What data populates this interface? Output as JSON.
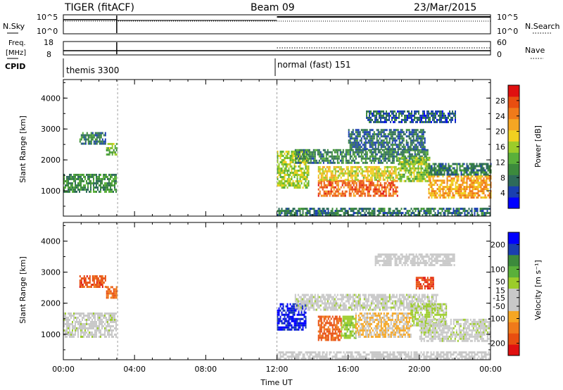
{
  "header": {
    "title": "TIGER (fitACF)",
    "beam": "Beam 09",
    "date": "23/Mar/2015"
  },
  "params": {
    "nsky_label": "N.Sky",
    "nsearch_label": "N.Search",
    "freq_label": "Freq.",
    "freq_unit": "[MHz]",
    "nave_label": "Nave",
    "cpid_label": "CPID",
    "nsky_ticks": [
      "10^5",
      "10^0"
    ],
    "nsearch_ticks": [
      "10^5",
      "10^0"
    ],
    "freq_ticks": [
      "18",
      "8"
    ],
    "nave_ticks": [
      "60",
      "0"
    ],
    "cpid_segments": [
      {
        "text": "themis 3300",
        "start_hour": 0
      },
      {
        "text": "normal (fast) 151",
        "start_hour": 12
      }
    ]
  },
  "chart_data": [
    {
      "type": "heatmap",
      "name": "power-panel",
      "ylabel": "Slant Range [km]",
      "xlabel": "",
      "xlim": [
        0,
        24
      ],
      "ylim": [
        180,
        4600
      ],
      "yticks": [
        "4000",
        "3000",
        "2000",
        "1000"
      ],
      "ytick_values": [
        4000,
        3000,
        2000,
        1000
      ],
      "colorbar": {
        "label": "Power [dB]",
        "ticks": [
          "28",
          "24",
          "20",
          "16",
          "12",
          "8",
          "4"
        ],
        "tick_values": [
          28,
          24,
          20,
          16,
          12,
          8,
          4
        ],
        "range": [
          0,
          32
        ],
        "colors": [
          "#0000ff",
          "#1a3fb0",
          "#2e6b5a",
          "#3c8a3c",
          "#5ab03a",
          "#9ccc2a",
          "#f0d020",
          "#f5a623",
          "#f07a1a",
          "#e84e10",
          "#e01010"
        ]
      },
      "echo_regions": [
        {
          "t0": 0.0,
          "t1": 3.0,
          "r0": 950,
          "r1": 1550,
          "level": 10
        },
        {
          "t0": 0.9,
          "t1": 2.4,
          "r0": 2550,
          "r1": 2900,
          "level": 8
        },
        {
          "t0": 2.4,
          "t1": 3.0,
          "r0": 2150,
          "r1": 2550,
          "level": 14
        },
        {
          "t0": 12.0,
          "t1": 13.8,
          "r0": 1100,
          "r1": 2300,
          "level": 16
        },
        {
          "t0": 14.3,
          "t1": 18.8,
          "r0": 850,
          "r1": 1350,
          "level": 26
        },
        {
          "t0": 14.3,
          "t1": 18.8,
          "r0": 1350,
          "r1": 1800,
          "level": 18
        },
        {
          "t0": 13.0,
          "t1": 20.5,
          "r0": 1900,
          "r1": 2350,
          "level": 9
        },
        {
          "t0": 16.0,
          "t1": 20.3,
          "r0": 2350,
          "r1": 3000,
          "level": 7
        },
        {
          "t0": 18.8,
          "t1": 20.6,
          "r0": 1300,
          "r1": 2100,
          "level": 15
        },
        {
          "t0": 20.5,
          "t1": 24.0,
          "r0": 800,
          "r1": 1500,
          "level": 22
        },
        {
          "t0": 20.5,
          "t1": 24.0,
          "r0": 1500,
          "r1": 1900,
          "level": 9
        },
        {
          "t0": 12.0,
          "t1": 24.0,
          "r0": 200,
          "r1": 450,
          "level": 8
        },
        {
          "t0": 17.0,
          "t1": 22.0,
          "r0": 3200,
          "r1": 3600,
          "level": 6
        }
      ]
    },
    {
      "type": "heatmap",
      "name": "velocity-panel",
      "ylabel": "Slant Range [km]",
      "xlabel": "Time UT",
      "xlim": [
        0,
        24
      ],
      "ylim": [
        180,
        4600
      ],
      "xticks": [
        "00:00",
        "04:00",
        "08:00",
        "12:00",
        "16:00",
        "20:00",
        "00:00"
      ],
      "xtick_values": [
        0,
        4,
        8,
        12,
        16,
        20,
        24
      ],
      "yticks": [
        "4000",
        "3000",
        "2000",
        "1000"
      ],
      "ytick_values": [
        4000,
        3000,
        2000,
        1000
      ],
      "colorbar": {
        "label": "Velocity [m s⁻¹]",
        "ticks": [
          "200",
          "100",
          "50",
          "15",
          "-15",
          "-50",
          "-100",
          "-200"
        ],
        "tick_values": [
          200,
          100,
          50,
          15,
          -15,
          -50,
          -100,
          -200
        ],
        "range": [
          -250,
          250
        ],
        "colors": [
          "#e01010",
          "#e84e10",
          "#f07a1a",
          "#f5a623",
          "#c8c8c8",
          "#c8c8c8",
          "#9ccc2a",
          "#5ab03a",
          "#3c8a3c",
          "#1a3fb0",
          "#0000ff"
        ]
      },
      "echo_regions": [
        {
          "t0": 0.0,
          "t1": 3.0,
          "r0": 950,
          "r1": 1700,
          "v": 0
        },
        {
          "t0": 0.9,
          "t1": 2.4,
          "r0": 2550,
          "r1": 2900,
          "v": -180
        },
        {
          "t0": 2.4,
          "t1": 3.0,
          "r0": 2150,
          "r1": 2550,
          "v": -160
        },
        {
          "t0": 12.0,
          "t1": 13.6,
          "r0": 1150,
          "r1": 2000,
          "v": 210
        },
        {
          "t0": 14.3,
          "t1": 15.6,
          "r0": 850,
          "r1": 1600,
          "v": -170
        },
        {
          "t0": 15.6,
          "t1": 16.4,
          "r0": 900,
          "r1": 1600,
          "v": 50
        },
        {
          "t0": 16.4,
          "t1": 19.5,
          "r0": 900,
          "r1": 1700,
          "v": -70
        },
        {
          "t0": 13.0,
          "t1": 21.0,
          "r0": 1800,
          "r1": 2300,
          "v": 0
        },
        {
          "t0": 19.5,
          "t1": 21.5,
          "r0": 1300,
          "r1": 2000,
          "v": 30
        },
        {
          "t0": 20.0,
          "t1": 24.0,
          "r0": 800,
          "r1": 1500,
          "v": 0
        },
        {
          "t0": 19.8,
          "t1": 20.8,
          "r0": 2500,
          "r1": 2850,
          "v": -190
        },
        {
          "t0": 17.5,
          "t1": 22.0,
          "r0": 3200,
          "r1": 3600,
          "v": -30
        },
        {
          "t0": 12.0,
          "t1": 24.0,
          "r0": 200,
          "r1": 450,
          "v": -20
        }
      ]
    }
  ],
  "colors": {
    "axis": "#000000",
    "background": "#ffffff",
    "marker": "#a0a0a0"
  }
}
